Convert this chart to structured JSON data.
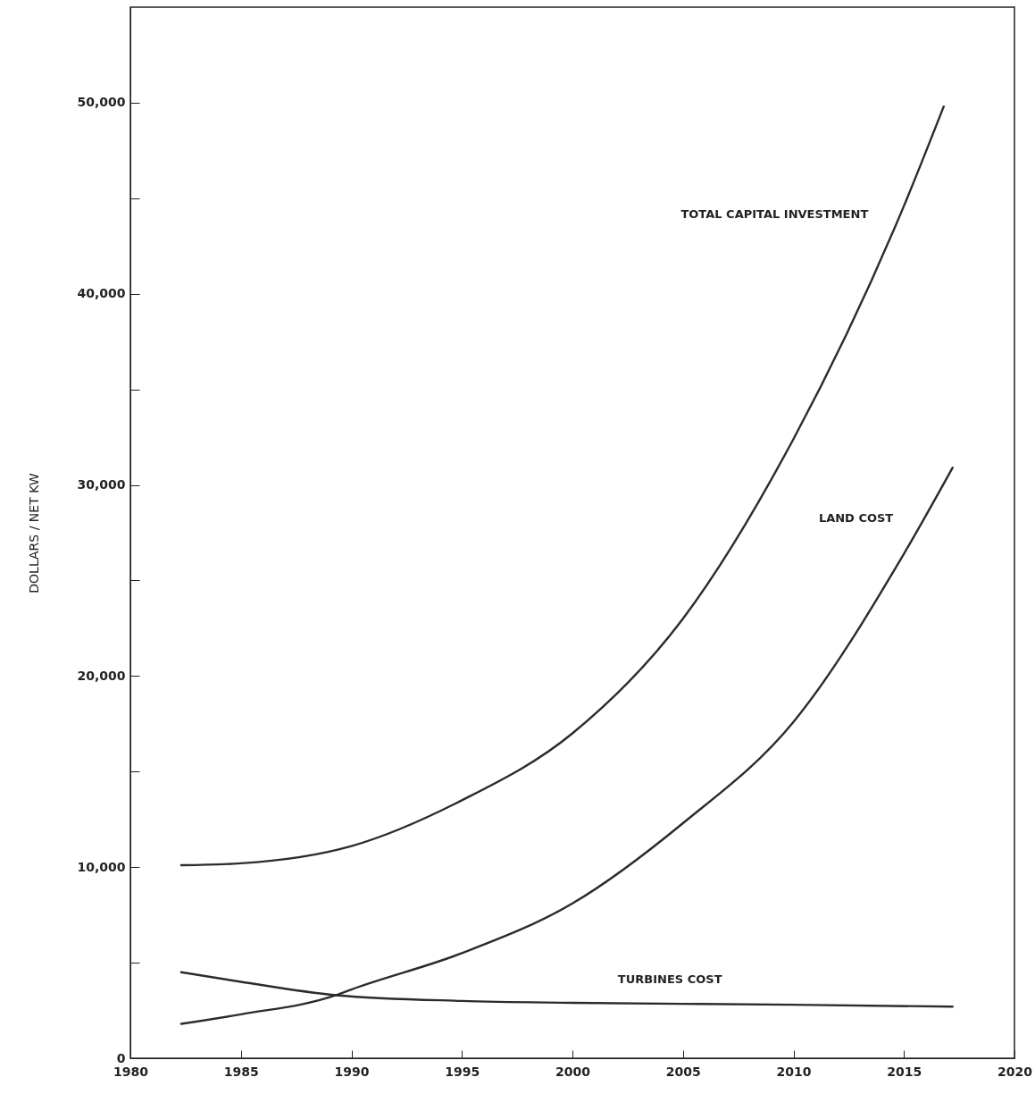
{
  "chart_data": {
    "type": "line",
    "ylabel": "DOLLARS / NET KW",
    "xlim": [
      1980,
      2020
    ],
    "xticks": [
      1980,
      1985,
      1990,
      1995,
      2000,
      2005,
      2010,
      2015,
      2020
    ],
    "ylim": [
      0,
      55000
    ],
    "yticks": [
      0,
      {
        "value": 5000,
        "label": null
      },
      {
        "value": 10000,
        "label": "10,000"
      },
      {
        "value": 15000,
        "label": null
      },
      {
        "value": 20000,
        "label": "20,000"
      },
      {
        "value": 25000,
        "label": null
      },
      {
        "value": 30000,
        "label": "30,000"
      },
      {
        "value": 35000,
        "label": null
      },
      {
        "value": 40000,
        "label": "40,000"
      },
      {
        "value": 45000,
        "label": null
      },
      {
        "value": 50000,
        "label": "50,000"
      }
    ],
    "grid": false,
    "line_style": "solid",
    "series": [
      {
        "name": "TOTAL CAPITAL INVESTMENT",
        "color": "#2b2b2b",
        "x": [
          1982.3,
          1985,
          1990,
          1995,
          2000,
          2005,
          2010,
          2015,
          2016.8
        ],
        "values": [
          10100,
          10200,
          11100,
          13500,
          17000,
          23000,
          32400,
          44600,
          49800
        ]
      },
      {
        "name": "LAND COST",
        "color": "#2b2b2b",
        "x": [
          1982.3,
          1985,
          1989.3,
          1990,
          1995,
          2000,
          2005,
          2010,
          2015,
          2017.2
        ],
        "values": [
          1800,
          2300,
          3300,
          3600,
          5500,
          8100,
          12300,
          17600,
          26400,
          30900
        ]
      },
      {
        "name": "TURBINES COST",
        "color": "#2b2b2b",
        "x": [
          1982.3,
          1985,
          1989.3,
          1995,
          2000,
          2010,
          2017.2
        ],
        "values": [
          4500,
          4000,
          3300,
          3000,
          2900,
          2800,
          2700
        ]
      }
    ]
  }
}
